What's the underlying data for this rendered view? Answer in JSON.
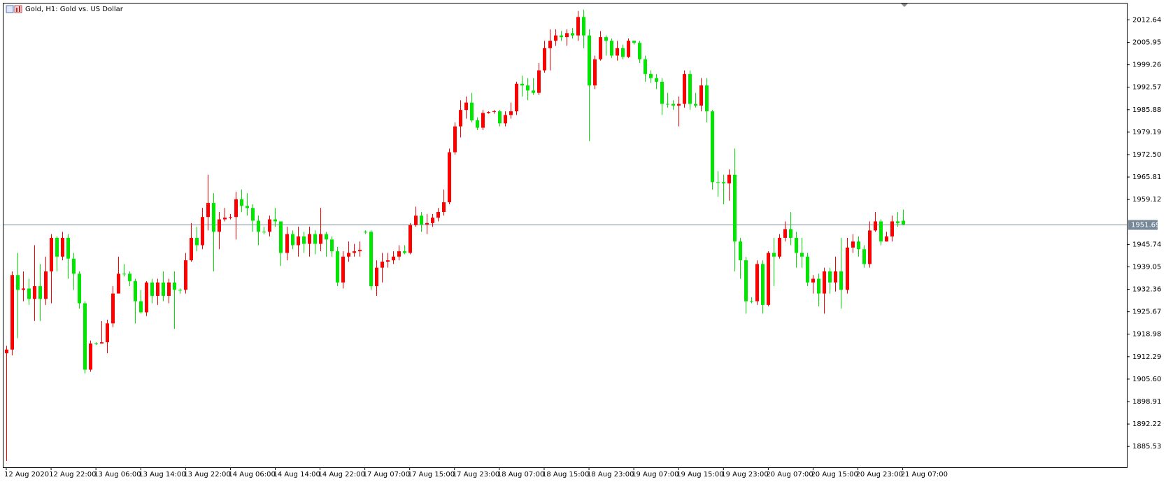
{
  "chart_data": {
    "type": "candlestick",
    "title": "Gold, H1:  Gold vs. US Dollar",
    "up_color": "#ff0000",
    "down_color": "#00e600",
    "price_line": {
      "value": 1951.69,
      "color": "#778899"
    },
    "ylim": [
      1879.32,
      2017.52
    ],
    "yticks": [
      2012.64,
      2005.95,
      1999.26,
      1992.57,
      1985.88,
      1979.19,
      {
        "value": 1972.5,
        "label": "1972.50"
      },
      1965.81,
      1959.12,
      1945.74,
      1939.05,
      1932.36,
      1925.67,
      1918.98,
      1912.29,
      {
        "value": 1905.6,
        "label": "1905.60"
      },
      1898.91,
      1892.22,
      1885.53
    ],
    "categories": [
      "12 Aug 2020",
      null,
      null,
      null,
      null,
      null,
      null,
      null,
      "12 Aug 22:00",
      null,
      null,
      null,
      null,
      null,
      null,
      null,
      "13 Aug 06:00",
      null,
      null,
      null,
      null,
      null,
      null,
      null,
      "13 Aug 14:00",
      null,
      null,
      null,
      null,
      null,
      null,
      null,
      "13 Aug 22:00",
      null,
      null,
      null,
      null,
      null,
      null,
      null,
      "14 Aug 06:00",
      null,
      null,
      null,
      null,
      null,
      null,
      null,
      "14 Aug 14:00",
      null,
      null,
      null,
      null,
      null,
      null,
      null,
      "14 Aug 22:00",
      null,
      null,
      null,
      null,
      null,
      null,
      null,
      "17 Aug 07:00",
      null,
      null,
      null,
      null,
      null,
      null,
      null,
      "17 Aug 15:00",
      null,
      null,
      null,
      null,
      null,
      null,
      null,
      "17 Aug 23:00",
      null,
      null,
      null,
      null,
      null,
      null,
      null,
      "18 Aug 07:00",
      null,
      null,
      null,
      null,
      null,
      null,
      null,
      "18 Aug 15:00",
      null,
      null,
      null,
      null,
      null,
      null,
      null,
      "18 Aug 23:00",
      null,
      null,
      null,
      null,
      null,
      null,
      null,
      "19 Aug 07:00",
      null,
      null,
      null,
      null,
      null,
      null,
      null,
      "19 Aug 15:00",
      null,
      null,
      null,
      null,
      null,
      null,
      null,
      "19 Aug 23:00",
      null,
      null,
      null,
      null,
      null,
      null,
      null,
      "20 Aug 07:00",
      null,
      null,
      null,
      null,
      null,
      null,
      null,
      "20 Aug 15:00",
      null,
      null,
      null,
      null,
      null,
      null,
      null,
      "20 Aug 23:00",
      null,
      null,
      null,
      null,
      null,
      null,
      null,
      "21 Aug 07:00"
    ],
    "open": [
      1913.3,
      1914.4,
      1936.6,
      1932.2,
      1932.6,
      1929.5,
      1933.3,
      1929.5,
      1937.7,
      1947.7,
      1942.1,
      1947.7,
      1941.5,
      1937.0,
      1928.2,
      1908.4,
      1916.2,
      1916.2,
      1916.6,
      1922.2,
      1931.1,
      1937.0,
      1937.0,
      1934.8,
      1928.8,
      1925.5,
      1934.4,
      1930.4,
      1934.4,
      1930.4,
      1934.4,
      1932.2,
      1932.2,
      1941.0,
      1947.7,
      1945.5,
      1953.9,
      1958.1,
      1949.5,
      1953.2,
      1953.7,
      1953.9,
      1959.2,
      1957.2,
      1956.6,
      1952.8,
      1949.5,
      1949.5,
      1953.2,
      1952.6,
      1943.2,
      1948.8,
      1945.5,
      1948.1,
      1945.9,
      1948.8,
      1945.9,
      1948.8,
      1947.2,
      1943.7,
      1934.4,
      1942.1,
      1943.2,
      1943.7,
      1949.5,
      1949.5,
      1933.3,
      1938.8,
      1940.6,
      1941.0,
      1942.1,
      1943.7,
      1943.2,
      1951.5,
      1954.3,
      1951.7,
      1952.1,
      1953.7,
      1955.4,
      1958.3,
      1973.2,
      1980.9,
      1985.8,
      1988.0,
      1982.7,
      1980.5,
      1984.9,
      1985.2,
      1985.4,
      1981.8,
      1984.3,
      1985.4,
      1993.6,
      1993.1,
      1991.6,
      1990.9,
      1997.6,
      2004.2,
      2006.4,
      2008.0,
      2007.5,
      2008.7,
      2008.0,
      2013.5,
      2008.0,
      1993.1,
      2000.9,
      2007.5,
      2006.4,
      2002.0,
      2004.2,
      2001.6,
      2006.4,
      2005.8,
      2000.9,
      1996.5,
      1995.3,
      1994.2,
      1987.6,
      1987.6,
      1987.1,
      1987.6,
      1996.5,
      1987.6,
      1987.1,
      1993.1,
      1985.4,
      1964.3,
      1964.3,
      1963.9,
      1966.5,
      1946.6,
      1941.0,
      1928.8,
      1928.8,
      1939.9,
      1927.7,
      1943.2,
      1942.1,
      1947.7,
      1950.3,
      1947.7,
      1943.2,
      1942.1,
      1934.4,
      1935.5,
      1931.1,
      1937.7,
      1934.4,
      1937.7,
      1932.2,
      1944.8,
      1946.6,
      1944.3,
      1939.9,
      1949.9,
      1952.6,
      1946.6,
      1948.1,
      1952.6,
      1952.8
    ],
    "high": [
      1915.5,
      1937.7,
      1943.2,
      1937.7,
      1935.5,
      1945.5,
      1939.9,
      1942.1,
      1948.8,
      1948.1,
      1949.5,
      1948.8,
      1943.2,
      1937.7,
      1928.8,
      1917.1,
      1916.6,
      1922.9,
      1923.3,
      1933.3,
      1942.1,
      1939.9,
      1937.7,
      1935.5,
      1932.2,
      1934.8,
      1935.5,
      1935.5,
      1937.7,
      1935.5,
      1937.7,
      1932.6,
      1943.2,
      1952.1,
      1951.0,
      1956.6,
      1966.5,
      1961.0,
      1955.4,
      1956.6,
      1954.8,
      1961.4,
      1962.1,
      1961.0,
      1957.7,
      1954.3,
      1951.0,
      1954.3,
      1956.6,
      1952.6,
      1951.0,
      1949.9,
      1951.0,
      1949.5,
      1951.0,
      1949.9,
      1956.6,
      1949.5,
      1948.1,
      1945.0,
      1943.7,
      1946.6,
      1945.9,
      1946.6,
      1949.9,
      1949.9,
      1941.0,
      1943.2,
      1943.2,
      1943.7,
      1945.5,
      1945.5,
      1952.1,
      1957.0,
      1955.4,
      1954.8,
      1954.8,
      1956.6,
      1962.1,
      1974.3,
      1982.1,
      1988.7,
      1989.8,
      1990.9,
      1983.6,
      1985.8,
      1985.4,
      1985.8,
      1985.8,
      1985.4,
      1988.0,
      1994.2,
      1996.0,
      1995.3,
      1995.3,
      1999.8,
      2006.4,
      2009.8,
      2009.8,
      2009.3,
      2009.8,
      2010.2,
      2015.3,
      2015.7,
      2009.8,
      2002.0,
      2009.3,
      2008.0,
      2007.1,
      2006.4,
      2005.3,
      2007.1,
      2006.4,
      2006.4,
      2002.0,
      1997.6,
      1996.5,
      1995.3,
      1990.9,
      1988.7,
      1989.8,
      1997.6,
      1997.6,
      1990.9,
      1995.3,
      1995.3,
      1985.8,
      1967.6,
      1966.5,
      1968.1,
      1974.3,
      1947.7,
      1942.1,
      1930.0,
      1941.0,
      1941.0,
      1943.7,
      1947.7,
      1948.8,
      1952.6,
      1955.4,
      1949.5,
      1947.7,
      1943.2,
      1936.6,
      1937.0,
      1938.8,
      1938.8,
      1942.1,
      1947.7,
      1947.7,
      1948.8,
      1948.1,
      1945.5,
      1952.6,
      1955.4,
      1953.2,
      1949.5,
      1954.3,
      1955.4,
      1956.1
    ],
    "low": [
      1881.2,
      1912.7,
      1917.8,
      1928.8,
      1927.7,
      1922.9,
      1922.9,
      1927.7,
      1928.2,
      1937.7,
      1941.0,
      1935.5,
      1932.2,
      1926.6,
      1907.3,
      1907.8,
      1915.8,
      1916.2,
      1913.3,
      1921.1,
      1931.1,
      1936.2,
      1933.3,
      1922.2,
      1925.1,
      1924.4,
      1928.2,
      1927.7,
      1928.8,
      1928.2,
      1920.6,
      1931.1,
      1931.1,
      1940.6,
      1943.7,
      1944.3,
      1949.9,
      1937.7,
      1944.3,
      1952.6,
      1953.2,
      1947.2,
      1955.4,
      1954.3,
      1949.5,
      1945.5,
      1948.8,
      1948.1,
      1951.0,
      1939.3,
      1941.0,
      1944.3,
      1942.1,
      1943.2,
      1942.1,
      1942.8,
      1943.7,
      1942.1,
      1942.1,
      1933.3,
      1932.6,
      1940.6,
      1942.1,
      1942.1,
      1948.8,
      1932.2,
      1930.4,
      1934.4,
      1938.8,
      1939.9,
      1941.0,
      1942.8,
      1942.8,
      1951.0,
      1949.5,
      1948.8,
      1951.0,
      1952.6,
      1954.3,
      1957.7,
      1972.5,
      1977.6,
      1983.2,
      1982.1,
      1979.8,
      1979.8,
      1984.7,
      1984.7,
      1980.9,
      1980.9,
      1983.2,
      1984.3,
      1989.8,
      1988.7,
      1990.3,
      1990.3,
      1996.9,
      1997.6,
      2004.9,
      2006.4,
      2004.9,
      2007.1,
      2006.4,
      2004.2,
      1976.5,
      1992.0,
      2000.5,
      2002.0,
      2001.3,
      2000.5,
      2000.9,
      2001.3,
      2005.3,
      1999.8,
      1994.2,
      1993.8,
      1992.0,
      1984.3,
      1986.5,
      1985.8,
      1980.9,
      1986.5,
      1985.8,
      1986.5,
      1985.4,
      1982.1,
      1962.1,
      1959.9,
      1957.7,
      1958.8,
      1937.7,
      1935.5,
      1925.1,
      1928.2,
      1927.7,
      1925.1,
      1927.3,
      1933.3,
      1941.5,
      1946.6,
      1945.5,
      1938.8,
      1938.8,
      1933.3,
      1931.1,
      1927.3,
      1925.1,
      1931.1,
      1931.7,
      1926.6,
      1931.1,
      1943.2,
      1942.1,
      1938.8,
      1938.8,
      1949.5,
      1945.5,
      1946.6,
      1946.6,
      1951.0,
      1951.5
    ],
    "close": [
      1914.4,
      1936.6,
      1932.2,
      1932.6,
      1929.5,
      1933.3,
      1929.5,
      1937.7,
      1947.7,
      1942.1,
      1947.7,
      1941.5,
      1937.0,
      1928.2,
      1908.4,
      1916.2,
      1916.2,
      1916.6,
      1922.2,
      1931.1,
      1937.0,
      1937.0,
      1934.8,
      1928.8,
      1925.5,
      1934.4,
      1930.4,
      1934.4,
      1930.4,
      1934.4,
      1932.2,
      1932.2,
      1941.0,
      1947.7,
      1945.5,
      1953.9,
      1958.1,
      1949.5,
      1953.2,
      1953.7,
      1953.9,
      1959.2,
      1957.2,
      1956.6,
      1952.8,
      1949.5,
      1949.5,
      1953.2,
      1952.6,
      1943.2,
      1948.8,
      1945.5,
      1948.1,
      1945.9,
      1948.8,
      1945.9,
      1948.8,
      1947.2,
      1943.7,
      1934.4,
      1942.1,
      1943.2,
      1943.7,
      1944.1,
      1949.5,
      1933.3,
      1938.8,
      1940.6,
      1941.0,
      1942.1,
      1943.7,
      1943.2,
      1951.5,
      1954.3,
      1951.7,
      1952.1,
      1953.7,
      1955.4,
      1958.3,
      1973.2,
      1980.9,
      1985.8,
      1988.0,
      1982.7,
      1980.5,
      1984.9,
      1985.2,
      1985.4,
      1981.8,
      1984.3,
      1985.4,
      1993.6,
      1993.1,
      1991.6,
      1990.9,
      1997.6,
      2004.2,
      2006.4,
      2008.0,
      2007.5,
      2008.7,
      2008.0,
      2013.5,
      2008.0,
      1993.1,
      2000.9,
      2007.5,
      2006.4,
      2002.0,
      2004.2,
      2001.6,
      2006.4,
      2005.8,
      2000.9,
      1996.5,
      1995.3,
      1994.2,
      1987.6,
      1987.6,
      1987.1,
      1987.6,
      1996.5,
      1987.6,
      1987.1,
      1993.1,
      1985.4,
      1964.3,
      1964.3,
      1963.9,
      1966.5,
      1946.6,
      1941.0,
      1928.8,
      1928.8,
      1939.9,
      1927.7,
      1943.2,
      1942.1,
      1947.7,
      1950.3,
      1947.7,
      1943.2,
      1942.1,
      1934.4,
      1935.5,
      1931.1,
      1937.7,
      1934.4,
      1937.7,
      1932.2,
      1944.8,
      1946.6,
      1944.3,
      1939.9,
      1949.9,
      1952.6,
      1946.6,
      1948.1,
      1952.6,
      1952.1,
      1951.7
    ]
  }
}
